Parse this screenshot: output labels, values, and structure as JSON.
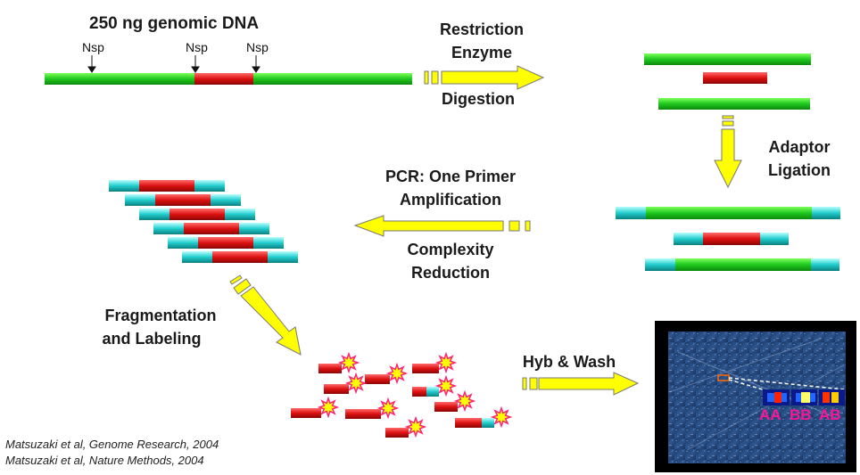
{
  "title": "250 ng genomic DNA",
  "site_label": "Nsp",
  "steps": {
    "digestion_top": "Restriction",
    "digestion_mid": "Enzyme",
    "digestion_bottom": "Digestion",
    "ligation_1": "Adaptor",
    "ligation_2": "Ligation",
    "pcr_1": "PCR: One Primer",
    "pcr_2": "Amplification",
    "complexity_1": "Complexity",
    "complexity_2": "Reduction",
    "frag_1": "Fragmentation",
    "frag_2": "and Labeling",
    "hyb": "Hyb & Wash"
  },
  "genotypes": [
    "AA",
    "BB",
    "AB"
  ],
  "citations": [
    "Matsuzaki et al, Genome Research, 2004",
    "Matsuzaki et al, Nature Methods, 2004"
  ],
  "colors": {
    "dna": "#22cc22",
    "fragment": "#dd1111",
    "adaptor": "#22cccc",
    "arrow": "#ffff00",
    "genotype_text": "#ff1493"
  }
}
